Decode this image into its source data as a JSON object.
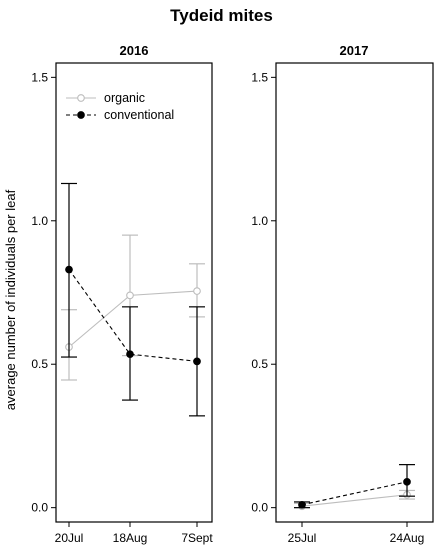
{
  "title": "Tydeid mites",
  "ylabel": "average number of individuals per leaf",
  "colors": {
    "organic": "#bdbdbd",
    "conventional": "#000000",
    "axis": "#000000"
  },
  "legend": {
    "placement": "top-left of first panel",
    "entries": [
      {
        "label": "organic",
        "marker": "open-circle",
        "line": "solid"
      },
      {
        "label": "conventional",
        "marker": "filled-circle",
        "line": "dashed"
      }
    ]
  },
  "chart_data": [
    {
      "type": "line",
      "title": "2016",
      "categories": [
        "20Jul",
        "18Aug",
        "7Sept"
      ],
      "ylim": [
        -0.05,
        1.55
      ],
      "yticks": [
        0.0,
        0.5,
        1.0,
        1.5
      ],
      "ytick_labels": [
        "0.0",
        "0.5",
        "1.0",
        "1.5"
      ],
      "series": [
        {
          "name": "organic",
          "values": [
            0.56,
            0.74,
            0.755
          ],
          "err_low": [
            0.445,
            0.53,
            0.665
          ],
          "err_high": [
            0.69,
            0.95,
            0.85
          ]
        },
        {
          "name": "conventional",
          "values": [
            0.83,
            0.535,
            0.51
          ],
          "err_low": [
            0.525,
            0.375,
            0.32
          ],
          "err_high": [
            1.13,
            0.7,
            0.7
          ]
        }
      ]
    },
    {
      "type": "line",
      "title": "2017",
      "categories": [
        "25Jul",
        "24Aug"
      ],
      "ylim": [
        -0.05,
        1.55
      ],
      "yticks": [
        0.0,
        0.5,
        1.0,
        1.5
      ],
      "ytick_labels": [
        "0.0",
        "0.5",
        "1.0",
        "1.5"
      ],
      "series": [
        {
          "name": "organic",
          "values": [
            0.005,
            0.045
          ],
          "err_low": [
            0.0,
            0.03
          ],
          "err_high": [
            0.015,
            0.06
          ]
        },
        {
          "name": "conventional",
          "values": [
            0.01,
            0.09
          ],
          "err_low": [
            0.0,
            0.04
          ],
          "err_high": [
            0.02,
            0.15
          ]
        }
      ]
    }
  ]
}
